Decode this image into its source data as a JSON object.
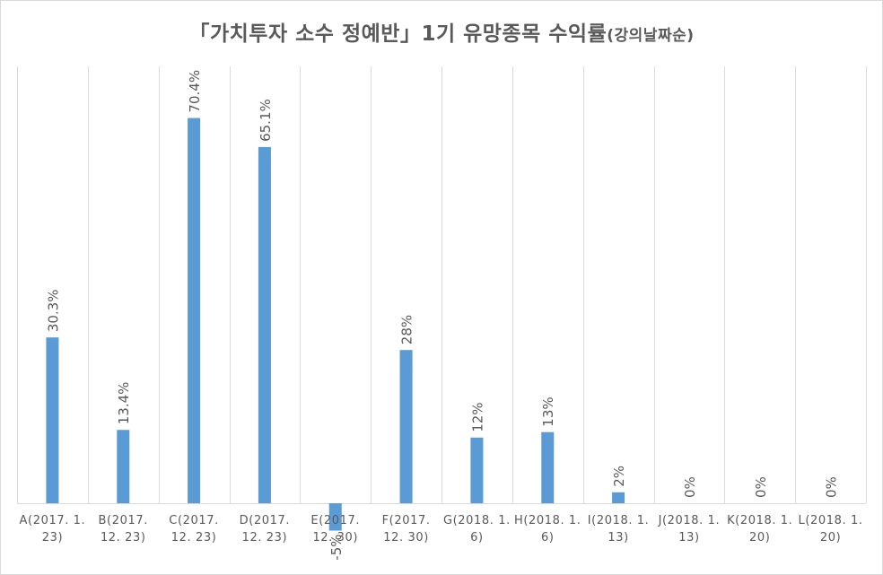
{
  "chart_data": {
    "type": "bar",
    "title": "「가치투자 소수 정예반」1기 유망종목 수익률",
    "subtitle": "(강의날짜순)",
    "categories": [
      [
        "A(2017. 1.",
        "23)"
      ],
      [
        "B(2017.",
        "12. 23)"
      ],
      [
        "C(2017.",
        "12. 23)"
      ],
      [
        "D(2017.",
        "12. 23)"
      ],
      [
        "E(2017.",
        "12. 30)"
      ],
      [
        "F(2017.",
        "12. 30)"
      ],
      [
        "G(2018. 1.",
        "6)"
      ],
      [
        "H(2018. 1.",
        "6)"
      ],
      [
        "I(2018. 1.",
        "13)"
      ],
      [
        "J(2018. 1.",
        "13)"
      ],
      [
        "K(2018. 1.",
        "20)"
      ],
      [
        "L(2018. 1.",
        "20)"
      ]
    ],
    "values": [
      30.3,
      13.4,
      70.4,
      65.1,
      -5,
      28,
      12,
      13,
      2,
      0,
      0,
      0
    ],
    "data_labels": [
      "30.3%",
      "13.4%",
      "70.4%",
      "65.1%",
      "-5%",
      "28%",
      "12%",
      "13%",
      "2%",
      "0%",
      "0%",
      "0%"
    ],
    "ylim": [
      -10,
      80
    ],
    "xlabel": "",
    "ylabel": "",
    "grid": "vertical",
    "colors": {
      "bar": "#5b9bd5",
      "grid": "#d9d9d9",
      "text": "#595959"
    }
  }
}
